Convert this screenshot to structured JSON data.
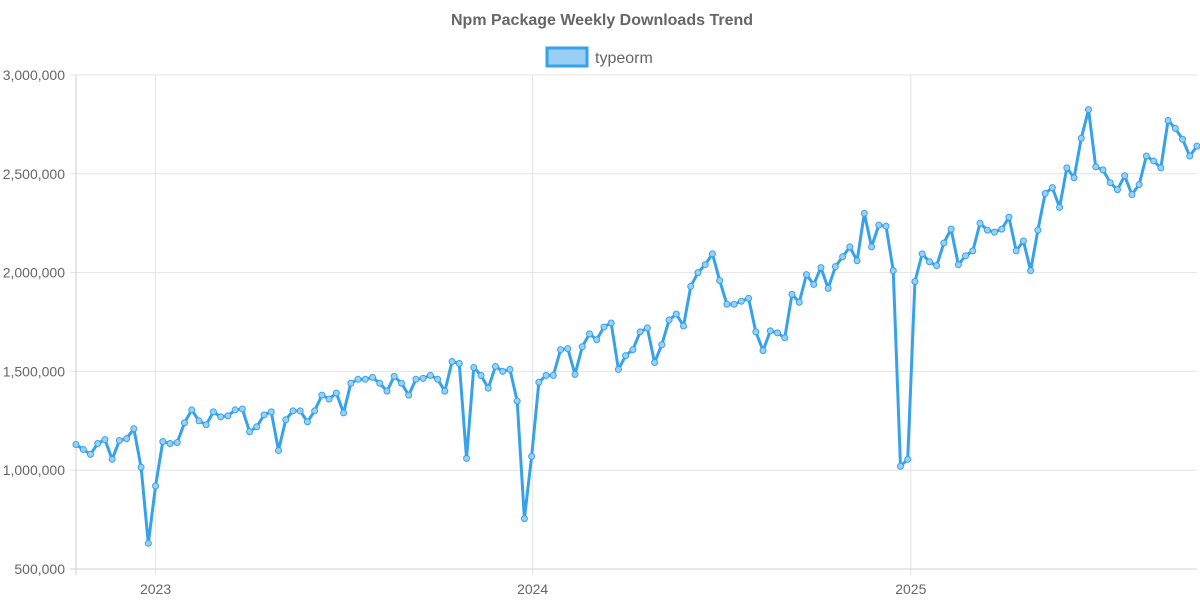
{
  "chart_data": {
    "type": "line",
    "title": "Npm Package Weekly Downloads Trend",
    "xlabel": "",
    "ylabel": "",
    "ylim": [
      500000,
      3000000
    ],
    "yticks": [
      "500,000",
      "1,000,000",
      "1,500,000",
      "2,000,000",
      "2,500,000",
      "3,000,000"
    ],
    "xticks": [
      "2023",
      "2024",
      "2025"
    ],
    "x_start": "2022-10-16",
    "x_interval": "weekly",
    "grid": true,
    "legend_position": "top-center",
    "series": [
      {
        "name": "typeorm",
        "color": "#36a2eb",
        "fill": "#9ad0f5",
        "values": [
          1130000,
          1105000,
          1080000,
          1135000,
          1155000,
          1055000,
          1150000,
          1160000,
          1210000,
          1015000,
          630000,
          920000,
          1145000,
          1135000,
          1140000,
          1240000,
          1305000,
          1250000,
          1230000,
          1295000,
          1270000,
          1275000,
          1305000,
          1310000,
          1195000,
          1220000,
          1280000,
          1295000,
          1100000,
          1255000,
          1300000,
          1300000,
          1245000,
          1300000,
          1380000,
          1360000,
          1390000,
          1290000,
          1440000,
          1460000,
          1460000,
          1470000,
          1440000,
          1400000,
          1475000,
          1440000,
          1380000,
          1460000,
          1465000,
          1480000,
          1460000,
          1400000,
          1550000,
          1540000,
          1060000,
          1520000,
          1480000,
          1415000,
          1525000,
          1500000,
          1510000,
          1350000,
          755000,
          1070000,
          1445000,
          1480000,
          1480000,
          1610000,
          1615000,
          1485000,
          1625000,
          1690000,
          1660000,
          1725000,
          1745000,
          1510000,
          1580000,
          1610000,
          1700000,
          1720000,
          1545000,
          1635000,
          1760000,
          1790000,
          1730000,
          1930000,
          2000000,
          2040000,
          2095000,
          1960000,
          1840000,
          1840000,
          1855000,
          1870000,
          1700000,
          1605000,
          1705000,
          1695000,
          1670000,
          1890000,
          1850000,
          1990000,
          1940000,
          2025000,
          1920000,
          2030000,
          2080000,
          2130000,
          2060000,
          2300000,
          2130000,
          2240000,
          2235000,
          2010000,
          1020000,
          1055000,
          1955000,
          2095000,
          2055000,
          2035000,
          2150000,
          2220000,
          2040000,
          2085000,
          2110000,
          2250000,
          2215000,
          2205000,
          2220000,
          2280000,
          2110000,
          2160000,
          2010000,
          2215000,
          2400000,
          2430000,
          2330000,
          2530000,
          2480000,
          2680000,
          2825000,
          2535000,
          2520000,
          2455000,
          2420000,
          2490000,
          2395000,
          2445000,
          2590000,
          2565000,
          2530000,
          2770000,
          2730000,
          2675000,
          2590000,
          2640000
        ]
      }
    ]
  }
}
